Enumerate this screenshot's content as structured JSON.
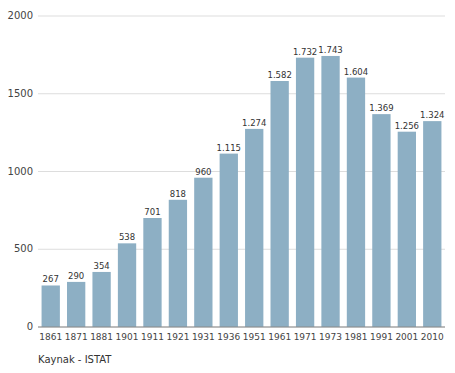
{
  "chart_data": {
    "type": "bar",
    "categories": [
      "1861",
      "1871",
      "1881",
      "1901",
      "1911",
      "1921",
      "1931",
      "1936",
      "1951",
      "1961",
      "1971",
      "1973",
      "1981",
      "1991",
      "2001",
      "2010"
    ],
    "values": [
      267,
      290,
      354,
      538,
      701,
      818,
      960,
      1115,
      1274,
      1582,
      1732,
      1743,
      1604,
      1369,
      1256,
      1324
    ],
    "value_labels": [
      "267",
      "290",
      "354",
      "538",
      "701",
      "818",
      "960",
      "1.115",
      "1.274",
      "1.582",
      "1.732",
      "1.743",
      "1.604",
      "1.369",
      "1.256",
      "1.324"
    ],
    "data_labels": true,
    "color": "#8dafc4",
    "ylim": [
      0,
      2000
    ],
    "yticks": [
      0,
      500,
      1000,
      1500,
      2000
    ],
    "grid": true,
    "footnote": "Kaynak - ISTAT"
  }
}
